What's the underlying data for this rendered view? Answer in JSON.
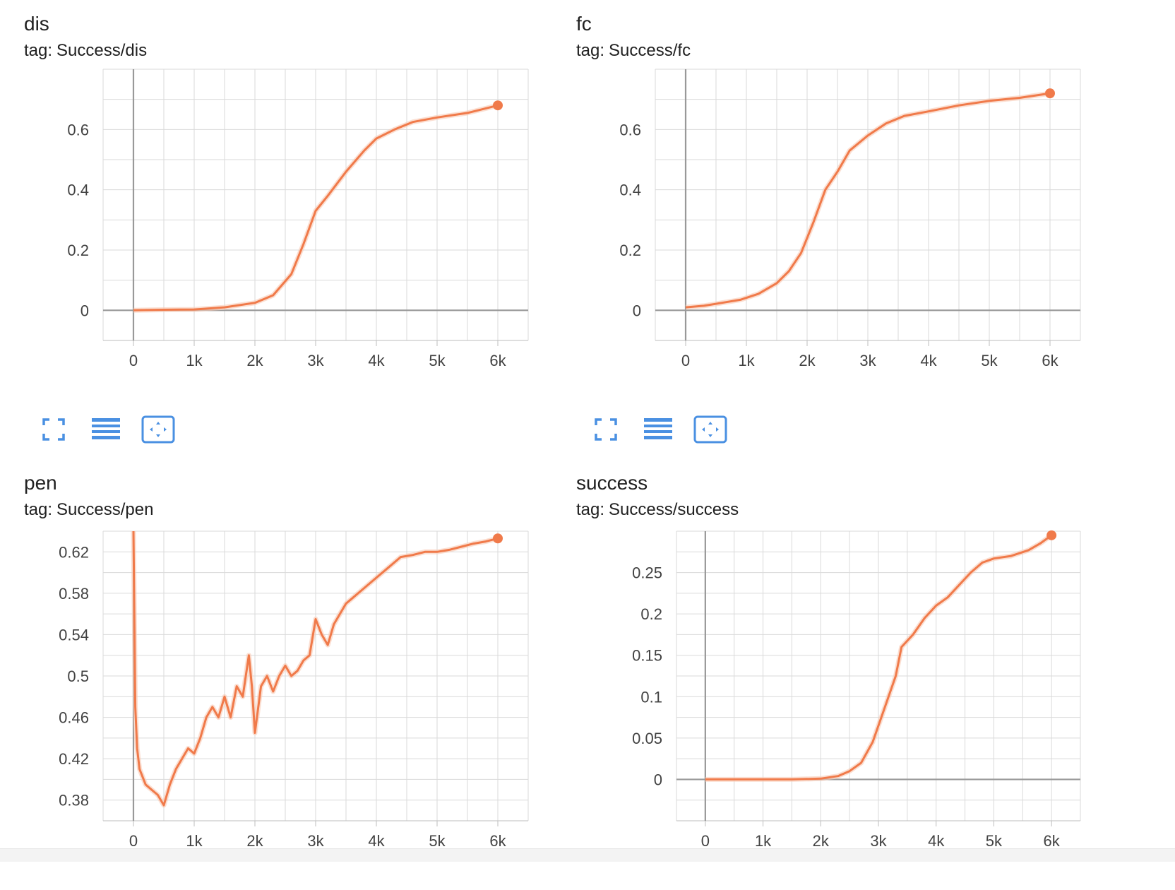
{
  "cards": [
    {
      "title": "dis",
      "tag_label": "tag:",
      "tag_value": "Success/dis"
    },
    {
      "title": "fc",
      "tag_label": "tag:",
      "tag_value": "Success/fc"
    },
    {
      "title": "pen",
      "tag_label": "tag:",
      "tag_value": "Success/pen"
    },
    {
      "title": "success",
      "tag_label": "tag:",
      "tag_value": "Success/success"
    }
  ],
  "toolbar": {
    "icons": [
      "fullscreen-icon",
      "list-lines-icon",
      "fit-domain-icon"
    ]
  },
  "colors": {
    "series": "#f07a4a",
    "series_raw": "#f8c9b4",
    "grid": "#dadada",
    "axis": "#999999",
    "tick_text": "#424242",
    "toolbar_icon": "#4a90e2"
  },
  "chart_data": [
    {
      "type": "line",
      "title": "dis",
      "subtitle": "tag: Success/dis",
      "xlabel": "",
      "ylabel": "",
      "xlim": [
        -500,
        6500
      ],
      "ylim": [
        -0.1,
        0.8
      ],
      "xticks": [
        0,
        1000,
        2000,
        3000,
        4000,
        5000,
        6000
      ],
      "xtick_labels": [
        "0",
        "1k",
        "2k",
        "3k",
        "4k",
        "5k",
        "6k"
      ],
      "yticks": [
        0,
        0.2,
        0.4,
        0.6
      ],
      "ytick_labels": [
        "0",
        "0.2",
        "0.4",
        "0.6"
      ],
      "grid": true,
      "series": [
        {
          "x": [
            0,
            500,
            1000,
            1500,
            2000,
            2300,
            2600,
            2800,
            3000,
            3200,
            3500,
            3800,
            4000,
            4300,
            4600,
            5000,
            5500,
            6000
          ],
          "y": [
            0,
            0.002,
            0.003,
            0.01,
            0.025,
            0.05,
            0.12,
            0.22,
            0.33,
            0.38,
            0.46,
            0.53,
            0.57,
            0.6,
            0.625,
            0.64,
            0.655,
            0.68
          ]
        }
      ]
    },
    {
      "type": "line",
      "title": "fc",
      "subtitle": "tag: Success/fc",
      "xlabel": "",
      "ylabel": "",
      "xlim": [
        -500,
        6500
      ],
      "ylim": [
        -0.1,
        0.8
      ],
      "xticks": [
        0,
        1000,
        2000,
        3000,
        4000,
        5000,
        6000
      ],
      "xtick_labels": [
        "0",
        "1k",
        "2k",
        "3k",
        "4k",
        "5k",
        "6k"
      ],
      "yticks": [
        0,
        0.2,
        0.4,
        0.6
      ],
      "ytick_labels": [
        "0",
        "0.2",
        "0.4",
        "0.6"
      ],
      "grid": true,
      "series": [
        {
          "x": [
            0,
            300,
            600,
            900,
            1200,
            1500,
            1700,
            1900,
            2100,
            2300,
            2500,
            2700,
            3000,
            3300,
            3600,
            4000,
            4500,
            5000,
            5500,
            6000
          ],
          "y": [
            0.01,
            0.015,
            0.025,
            0.035,
            0.055,
            0.09,
            0.13,
            0.19,
            0.29,
            0.4,
            0.46,
            0.53,
            0.58,
            0.62,
            0.645,
            0.66,
            0.68,
            0.695,
            0.705,
            0.72
          ]
        }
      ]
    },
    {
      "type": "line",
      "title": "pen",
      "subtitle": "tag: Success/pen",
      "xlabel": "",
      "ylabel": "",
      "xlim": [
        -500,
        6500
      ],
      "ylim": [
        0.36,
        0.64
      ],
      "xticks": [
        0,
        1000,
        2000,
        3000,
        4000,
        5000,
        6000
      ],
      "xtick_labels": [
        "0",
        "1k",
        "2k",
        "3k",
        "4k",
        "5k",
        "6k"
      ],
      "yticks": [
        0.38,
        0.42,
        0.46,
        0.5,
        0.54,
        0.58,
        0.62
      ],
      "ytick_labels": [
        "0.38",
        "0.42",
        "0.46",
        "0.5",
        "0.54",
        "0.58",
        "0.62"
      ],
      "grid": true,
      "series": [
        {
          "x": [
            0,
            30,
            60,
            100,
            200,
            300,
            400,
            500,
            600,
            700,
            800,
            900,
            1000,
            1100,
            1200,
            1300,
            1400,
            1500,
            1600,
            1700,
            1800,
            1900,
            1950,
            2000,
            2100,
            2200,
            2300,
            2400,
            2500,
            2600,
            2700,
            2800,
            2900,
            3000,
            3100,
            3200,
            3300,
            3400,
            3500,
            3600,
            3800,
            4000,
            4200,
            4400,
            4600,
            4800,
            5000,
            5200,
            5400,
            5600,
            5800,
            6000
          ],
          "y": [
            0.64,
            0.47,
            0.43,
            0.41,
            0.395,
            0.39,
            0.385,
            0.375,
            0.395,
            0.41,
            0.42,
            0.43,
            0.425,
            0.44,
            0.46,
            0.47,
            0.46,
            0.48,
            0.46,
            0.49,
            0.48,
            0.52,
            0.49,
            0.445,
            0.49,
            0.5,
            0.485,
            0.5,
            0.51,
            0.5,
            0.505,
            0.515,
            0.52,
            0.555,
            0.54,
            0.53,
            0.55,
            0.56,
            0.57,
            0.575,
            0.585,
            0.595,
            0.605,
            0.615,
            0.617,
            0.62,
            0.62,
            0.622,
            0.625,
            0.628,
            0.63,
            0.633
          ]
        }
      ]
    },
    {
      "type": "line",
      "title": "success",
      "subtitle": "tag: Success/success",
      "xlabel": "",
      "ylabel": "",
      "xlim": [
        -500,
        6500
      ],
      "ylim": [
        -0.05,
        0.3
      ],
      "xticks": [
        0,
        1000,
        2000,
        3000,
        4000,
        5000,
        6000
      ],
      "xtick_labels": [
        "0",
        "1k",
        "2k",
        "3k",
        "4k",
        "5k",
        "6k"
      ],
      "yticks": [
        0,
        0.05,
        0.1,
        0.15,
        0.2,
        0.25
      ],
      "ytick_labels": [
        "0",
        "0.05",
        "0.1",
        "0.15",
        "0.2",
        "0.25"
      ],
      "grid": true,
      "series": [
        {
          "x": [
            0,
            500,
            1000,
            1500,
            2000,
            2300,
            2500,
            2700,
            2900,
            3100,
            3300,
            3400,
            3600,
            3800,
            4000,
            4200,
            4400,
            4600,
            4800,
            5000,
            5300,
            5600,
            5800,
            6000
          ],
          "y": [
            0,
            0,
            0,
            0,
            0.001,
            0.004,
            0.01,
            0.02,
            0.045,
            0.085,
            0.125,
            0.16,
            0.175,
            0.195,
            0.21,
            0.22,
            0.235,
            0.25,
            0.262,
            0.267,
            0.27,
            0.277,
            0.285,
            0.295
          ]
        }
      ]
    }
  ]
}
